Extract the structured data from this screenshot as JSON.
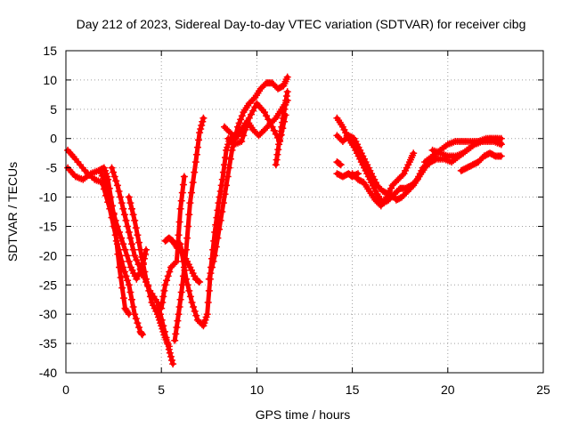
{
  "chart_data": {
    "type": "scatter",
    "title": "Day 212 of 2023, Sidereal Day-to-day VTEC variation (SDTVAR) for receiver cibg",
    "xlabel": "GPS time / hours",
    "ylabel": "SDTVAR / TECUs",
    "xlim": [
      0,
      25
    ],
    "ylim": [
      -40,
      15
    ],
    "xticks": [
      "0",
      "5",
      "10",
      "15",
      "20",
      "25"
    ],
    "yticks": [
      "15",
      "10",
      "5",
      "0",
      "-5",
      "-10",
      "-15",
      "-20",
      "-25",
      "-30",
      "-35",
      "-40"
    ],
    "xtick_values": [
      0,
      5,
      10,
      15,
      20,
      25
    ],
    "ytick_values": [
      15,
      10,
      5,
      0,
      -5,
      -10,
      -15,
      -20,
      -25,
      -30,
      -35,
      -40
    ],
    "grid": true,
    "marker": "+",
    "color": "#ff0000",
    "series": [
      {
        "x": [
          0.1,
          0.5,
          1.0,
          1.5,
          1.9,
          2.3,
          2.7,
          3.0,
          3.3,
          3.6,
          3.9,
          4.0
        ],
        "y": [
          -2,
          -3.5,
          -5.5,
          -7,
          -7.5,
          -12,
          -18,
          -22,
          -25,
          -30,
          -33,
          -33.5
        ]
      },
      {
        "x": [
          0.1,
          0.5,
          0.9,
          1.3,
          1.7,
          2.0,
          2.2,
          2.5,
          2.8,
          3.1,
          3.3
        ],
        "y": [
          -5,
          -6.5,
          -7,
          -6,
          -5.5,
          -5,
          -7,
          -13,
          -22,
          -29,
          -30
        ]
      },
      {
        "x": [
          1.8,
          2.2,
          2.6,
          3.0,
          3.4,
          3.7,
          4.0,
          4.2
        ],
        "y": [
          -5.5,
          -9,
          -14,
          -18,
          -22,
          -24,
          -22,
          -19
        ]
      },
      {
        "x": [
          2.4,
          2.7,
          3.0,
          3.3,
          3.6,
          4.0,
          4.4,
          4.8,
          5.1,
          5.4,
          5.6
        ],
        "y": [
          -5,
          -8,
          -12,
          -16,
          -20,
          -23,
          -26,
          -28,
          -32,
          -36,
          -38.5
        ]
      },
      {
        "x": [
          3.3,
          3.6,
          3.9,
          4.2,
          4.5,
          4.8,
          5.0,
          5.2,
          5.4
        ],
        "y": [
          -10,
          -14,
          -19,
          -24,
          -28,
          -30,
          -32,
          -34,
          -35.5
        ]
      },
      {
        "x": [
          5.0,
          5.2,
          5.5,
          5.8,
          6.0,
          6.2
        ],
        "y": [
          -29,
          -25,
          -22,
          -21,
          -12,
          -6.5
        ]
      },
      {
        "x": [
          5.2,
          5.4,
          5.6,
          5.8,
          6.0,
          6.2,
          6.5,
          6.8,
          7.0
        ],
        "y": [
          -17.5,
          -17,
          -17.5,
          -18.5,
          -19,
          -20,
          -22,
          -24,
          -24.5
        ]
      },
      {
        "x": [
          5.7,
          5.9,
          6.1,
          6.3,
          6.5,
          6.8,
          7.0,
          7.2
        ],
        "y": [
          -34.5,
          -30,
          -25,
          -19,
          -11,
          -4,
          1,
          3.5
        ]
      },
      {
        "x": [
          6.0,
          6.3,
          6.6,
          6.9,
          7.2,
          7.4,
          7.6,
          7.8,
          8.0,
          8.2,
          8.4,
          8.6
        ],
        "y": [
          -18,
          -24,
          -28,
          -31,
          -32,
          -30,
          -22,
          -16,
          -11,
          -7,
          -2,
          0
        ]
      },
      {
        "x": [
          7.5,
          7.8,
          8.1,
          8.4,
          8.7,
          9.0,
          9.3,
          9.6,
          9.9,
          10.2,
          10.5,
          10.8,
          11.1,
          11.4,
          11.6
        ],
        "y": [
          -24,
          -20,
          -14,
          -8,
          -2,
          2,
          4.5,
          6,
          7,
          8.5,
          9.5,
          9.5,
          8.5,
          9,
          10.5
        ]
      },
      {
        "x": [
          8.3,
          8.6,
          8.9,
          9.2,
          9.5,
          9.8,
          10.1,
          10.4,
          10.7,
          11.0,
          11.3,
          11.6
        ],
        "y": [
          2,
          1,
          0,
          1.5,
          3,
          1.5,
          0.5,
          1.5,
          2.5,
          3.5,
          5,
          6.5
        ]
      },
      {
        "x": [
          8.5,
          8.8,
          9.2,
          9.6,
          10.0,
          10.4,
          10.8,
          11.2,
          11.5
        ],
        "y": [
          0,
          -1,
          -0.5,
          3.5,
          6,
          4.5,
          2,
          -0.5,
          4
        ]
      },
      {
        "x": [
          11.0,
          11.15,
          11.3,
          11.45,
          11.6
        ],
        "y": [
          -4.5,
          -1,
          2,
          5,
          8
        ]
      },
      {
        "x": [
          14.2,
          14.5,
          14.8,
          15.1,
          15.4,
          15.7,
          16.0,
          16.3,
          16.6,
          16.9,
          17.2,
          17.5,
          17.8,
          18.1,
          18.4,
          18.7,
          19.0,
          19.3
        ],
        "y": [
          3.5,
          2,
          0,
          -1.5,
          -3.5,
          -5.5,
          -7.5,
          -9.5,
          -11,
          -10.5,
          -9.5,
          -8.5,
          -8.5,
          -8,
          -7,
          -5,
          -4,
          -3
        ]
      },
      {
        "x": [
          14.2,
          14.5,
          14.8,
          15.1,
          15.4,
          15.7,
          16.0,
          16.3,
          16.6,
          16.9,
          17.2
        ],
        "y": [
          0.5,
          -0.5,
          0.5,
          0,
          -2,
          -4,
          -6,
          -8,
          -9,
          -9.5,
          -10
        ]
      },
      {
        "x": [
          14.2,
          14.5,
          14.8,
          15.0,
          15.3
        ],
        "y": [
          -6,
          -6.5,
          -6,
          -6.5,
          -6
        ]
      },
      {
        "x": [
          15.0,
          15.3,
          15.6,
          15.9,
          16.2,
          16.5,
          16.8,
          17.1,
          17.4,
          17.7,
          18.0,
          18.2
        ],
        "y": [
          -6,
          -7,
          -7.5,
          -9,
          -10.5,
          -11.5,
          -10,
          -8,
          -7,
          -6,
          -4,
          -2.5
        ]
      },
      {
        "x": [
          17.3,
          17.6,
          17.9,
          18.2,
          18.5,
          18.8,
          19.1,
          19.4,
          19.8,
          20.2,
          20.6,
          21.0,
          21.4,
          21.8,
          22.2,
          22.6,
          22.8
        ],
        "y": [
          -10.5,
          -10,
          -9,
          -8,
          -6.5,
          -5,
          -4,
          -3.5,
          -3.5,
          -4,
          -3,
          -2,
          -1,
          -0.5,
          0,
          0,
          -1
        ]
      },
      {
        "x": [
          18.8,
          19.2,
          19.6,
          20.0,
          20.4,
          20.8,
          21.2,
          21.6,
          22.0,
          22.4,
          22.8
        ],
        "y": [
          -4,
          -3,
          -2,
          -1,
          -0.5,
          -0.5,
          -0.5,
          -0.5,
          -0.5,
          -0.5,
          -1
        ]
      },
      {
        "x": [
          19.2,
          19.6,
          20.0,
          20.4,
          20.8,
          21.2,
          21.6,
          22.0,
          22.4,
          22.8
        ],
        "y": [
          -2,
          -2.5,
          -3,
          -3,
          -2.5,
          -1.5,
          -0.5,
          0,
          0,
          0
        ]
      },
      {
        "x": [
          20.7,
          21.0,
          21.3,
          21.6,
          21.9,
          22.2,
          22.5,
          22.8
        ],
        "y": [
          -5.5,
          -5,
          -4.5,
          -4,
          -3,
          -2.5,
          -3,
          -3
        ]
      },
      {
        "x": [
          14.2,
          14.4
        ],
        "y": [
          -4,
          -4.5
        ]
      }
    ]
  }
}
